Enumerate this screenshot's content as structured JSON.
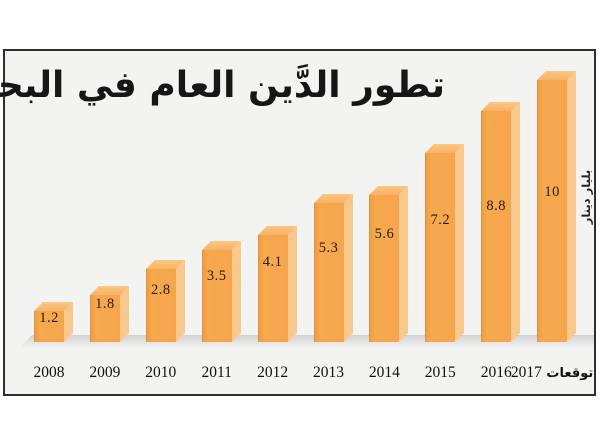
{
  "title": "تطور الدَّين العام في البحرين",
  "y_axis_label": "بليار دينار",
  "chart_data": {
    "type": "bar",
    "title": "تطور الدَّين العام في البحرين",
    "categories": [
      "2008",
      "2009",
      "2010",
      "2011",
      "2012",
      "2013",
      "2014",
      "2015",
      "2016",
      "2017"
    ],
    "values": [
      1.2,
      1.8,
      2.8,
      3.5,
      4.1,
      5.3,
      5.6,
      7.2,
      8.8,
      10
    ],
    "value_labels": [
      "1.2",
      "1.8",
      "2.8",
      "3.5",
      "4.1",
      "5.3",
      "5.6",
      "7.2",
      "8.8",
      "10"
    ],
    "forecast_label": "توقعات",
    "xlabel": "",
    "ylabel": "بليار دينار",
    "ylim": [
      0,
      10
    ],
    "grid": "off",
    "legend": "none",
    "colors": {
      "bar_front": "#f5a54c",
      "bar_side": "#f9c88d",
      "bar_top": "#fac07a",
      "background": "#f3f3f1",
      "frame_border": "#2e2e2e",
      "floor": "#d2d2d0",
      "text": "#161616"
    }
  }
}
